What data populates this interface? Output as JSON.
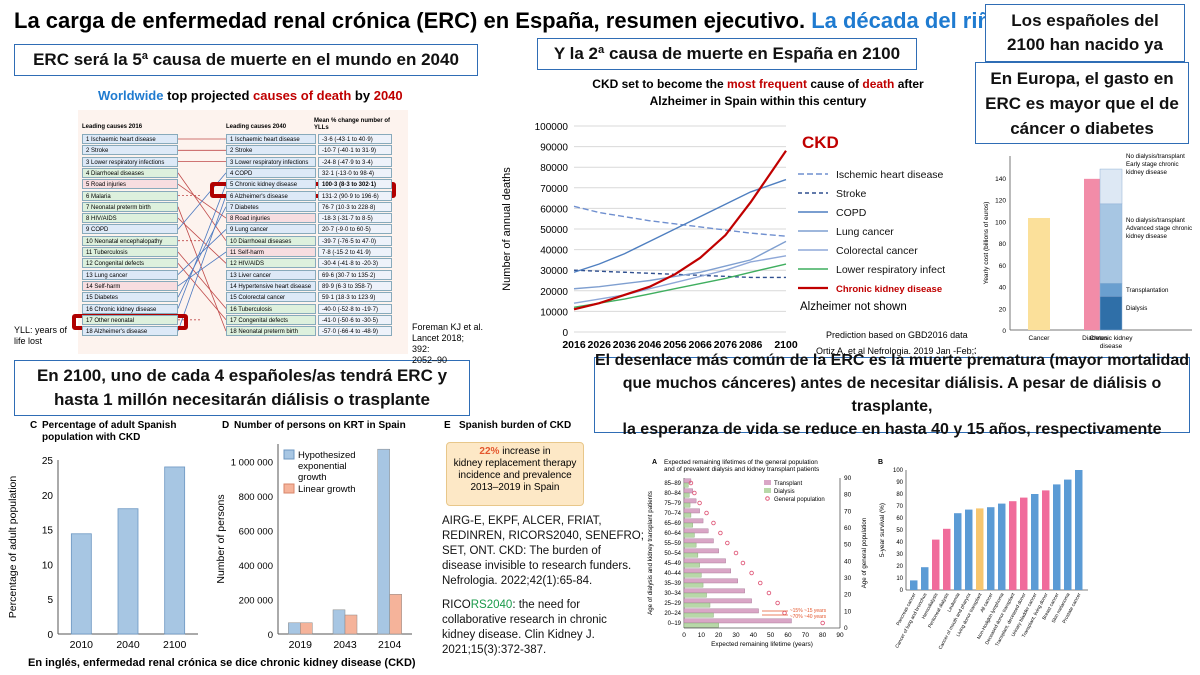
{
  "slide": {
    "title_main": "La carga de enfermedad renal crónica (ERC) en España, resumen ejecutivo.",
    "title_accent": "La década del riñón",
    "footer": "En inglés, enfermedad renal crónica se dice chronic kidney disease (CKD)"
  },
  "callouts": {
    "fifth_cause": "ERC será la 5ª causa de muerte en el mundo en 2040",
    "second_cause": "Y la 2ª causa de muerte en España en 2100",
    "born_already_l1": "Los españoles del",
    "born_already_l2": "2100 han nacido ya",
    "europe_cost_l1": "En Europa, el gasto en",
    "europe_cost_l2": "ERC es mayor que el de",
    "europe_cost_l3": "cáncer o diabetes",
    "one_in_four_l1": "En 2100, uno de cada 4 españoles/as tendrá ERC y",
    "one_in_four_l2": "hasta 1 millón necesitarán diálisis o trasplante",
    "premature_l1": "El desenlace más común de la ERC es la muerte prematura (mayor mortalidad",
    "premature_l2": "que muchos cánceres) antes de necesitar diálisis. A pesar de diálisis o trasplante,",
    "premature_l3": "la esperanza de vida se reduce en hasta 40 y 15 años, respectivamente"
  },
  "worldwide": {
    "title_a": "Worldwide",
    "title_b": " top projected ",
    "title_c": "causes of death",
    "title_d": " by ",
    "title_e": "2040",
    "col_left": "Leading causes 2016",
    "col_mid": "Leading causes 2040",
    "col_right": "Mean % change number of YLLs",
    "left_items": [
      "1 Ischaemic heart disease",
      "2 Stroke",
      "3 Lower respiratory infections",
      "4 Diarrhoeal diseases",
      "5 Road injuries",
      "6 Malaria",
      "7 Neonatal preterm birth",
      "8 HIV/AIDS",
      "9 COPD",
      "10 Neonatal encephalopathy",
      "11 Tuberculosis",
      "12 Congenital defects",
      "13 Lung cancer",
      "14 Self-harm",
      "15 Diabetes",
      "16 Chronic kidney disease",
      "17 Other neonatal",
      "18 Alzheimer's disease"
    ],
    "mid_items": [
      "1 Ischaemic heart disease",
      "2 Stroke",
      "3 Lower respiratory infections",
      "4 COPD",
      "5 Chronic kidney disease",
      "6 Alzheimer's disease",
      "7 Diabetes",
      "8 Road injuries",
      "9 Lung cancer",
      "10 Diarrhoeal diseases",
      "11 Self-harm",
      "12 HIV/AIDS",
      "13 Liver cancer",
      "14 Hypertensive heart disease",
      "15 Colorectal cancer",
      "16 Tuberculosis",
      "17 Congenital defects",
      "18 Neonatal preterm birth"
    ],
    "changes": [
      "-3·6 (-43·1 to 40·9)",
      "-10·7 (-40·1 to 31·9)",
      "-24·8 (-47·9 to 3·4)",
      "32·1 (-13·0 to 98·4)",
      "100·3 (8·3 to 302·1)",
      "131·2 (90·9 to 196·6)",
      "76·7 (10·3 to 228·8)",
      "-18·3 (-31·7 to 8·5)",
      "20·7 (-9·0 to 60·5)",
      "-39·7 (-76·5 to 47·0)",
      "7·8 (-15·2 to 41·9)",
      "-30·4 (-41·8 to -20·3)",
      "69·6 (30·7 to 135·2)",
      "89·9 (6·3 to 358·7)",
      "59·1 (18·3 to 123·9)",
      "-40·0 (-52·8 to -19·7)",
      "-41·0 (-50·6 to -30·5)",
      "-57·0 (-66·4 to -48·9)"
    ],
    "yll_note_l1": "YLL: years of",
    "yll_note_l2": "life lost",
    "ref_l1": "Foreman KJ et al.",
    "ref_l2": "Lancet 2018; 392:",
    "ref_l3": "2052–90"
  },
  "spain_chart": {
    "title_l1_a": "CKD set to become the ",
    "title_l1_b": "most frequent",
    "title_l1_c": " cause of ",
    "title_l1_d": "death",
    "title_l1_e": " after",
    "title_l2": "Alzheimer in Spain within this century",
    "ckd_label": "CKD",
    "alz_note": "Alzheimer not shown",
    "prediction_note": "Prediction based on GBD2016 data",
    "ref": "Ortiz A, et al Nefrologia. 2019 Jan -Feb;39(1"
  },
  "europe_chart": {
    "y_label": "Yearly cost (billions of euros)",
    "seg_labels": [
      "No dialysis/transplant Early stage chronic kidney disease",
      "No dialysis/transplant Advanced stage chronic kidney disease",
      "Transplantation",
      "Dialysis"
    ]
  },
  "panel_c": {
    "letter": "C",
    "title_l1": "Percentage of adult Spanish",
    "title_l2": "population with CKD"
  },
  "panel_d": {
    "letter": "D",
    "title": "Number of persons on KRT in Spain"
  },
  "panel_e": {
    "letter": "E",
    "title": "Spanish burden of CKD",
    "pct": "22%",
    "box_l1": " increase in",
    "box_l2": "kidney replacement therapy",
    "box_l3": "incidence and prevalence",
    "box_l4": "2013–2019 in Spain",
    "ref1_l1": "AIRG-E, EKPF, ALCER, FRIAT,",
    "ref1_l2": "REDINREN, RICORS2040, SENEFRO;",
    "ref1_l3": "SET, ONT. CKD: The burden of",
    "ref1_l4": "disease invisible to research funders.",
    "ref1_l5": "Nefrologia. 2022;42(1):65-84.",
    "ref2_a": "RICO",
    "ref2_b": "RS2040",
    "ref2_c": ": the need for",
    "ref2_l2": "collaborative research in chronic",
    "ref2_l3": "kidney disease. Clin Kidney J.",
    "ref2_l4": "2021;15(3):372-387."
  },
  "panel_life": {
    "letter": "A",
    "title_l1": "Expected remaining lifetimes of the general population",
    "title_l2": "and of prevalent dialysis and kidney transplant patients",
    "x_label": "Expected remaining lifetime (years)",
    "y_label_left": "Age of dialysis and kidney transplant patients",
    "y_label_right": "Age of general population",
    "note1": "~15% ~15 years",
    "note2": "~70% ~40 years"
  },
  "panel_survival": {
    "letter": "B",
    "y_label": "5-year survival (%)"
  },
  "chart_data": [
    {
      "type": "line",
      "title": "CKD set to become the most frequent cause of death after Alzheimer in Spain within this century",
      "ylabel": "Number of annual deaths",
      "x": [
        2016,
        2026,
        2036,
        2046,
        2056,
        2066,
        2076,
        2086,
        2100
      ],
      "ylim": [
        0,
        100000
      ],
      "yticks": [
        0,
        10000,
        20000,
        30000,
        40000,
        50000,
        60000,
        70000,
        80000,
        90000,
        100000
      ],
      "legend_position": "right",
      "series": [
        {
          "name": "Ischemic heart disease",
          "color": "#6f8fcf",
          "dash": "6,3",
          "values": [
            61000,
            58000,
            56000,
            54000,
            52500,
            51000,
            49500,
            48000,
            46500
          ]
        },
        {
          "name": "Stroke",
          "color": "#2f4f8f",
          "dash": "4,3",
          "values": [
            30000,
            29500,
            29000,
            28500,
            28000,
            27500,
            27000,
            26500,
            26500
          ]
        },
        {
          "name": "COPD",
          "color": "#4f7fc0",
          "dash": "",
          "values": [
            29000,
            33000,
            38000,
            44000,
            50000,
            56000,
            62000,
            68000,
            74000
          ]
        },
        {
          "name": "Lung cancer",
          "color": "#7f9fd0",
          "dash": "",
          "values": [
            21000,
            22000,
            23500,
            25000,
            27000,
            29000,
            32000,
            35000,
            44000
          ]
        },
        {
          "name": "Colorectal cancer",
          "color": "#8fa8d8",
          "dash": "",
          "values": [
            14000,
            16000,
            18000,
            21000,
            24000,
            27000,
            30000,
            34000,
            37000
          ]
        },
        {
          "name": "Lower respiratory infect",
          "color": "#3fae5f",
          "dash": "",
          "values": [
            12000,
            14000,
            16000,
            18500,
            21000,
            23500,
            26000,
            29000,
            33000
          ]
        },
        {
          "name": "Chronic kidney disease",
          "color": "#c00000",
          "dash": "",
          "values": [
            11000,
            14000,
            18000,
            22000,
            28000,
            36000,
            47000,
            63000,
            88000
          ]
        }
      ]
    },
    {
      "type": "bar",
      "title": "",
      "ylabel": "Yearly cost (billions of euros)",
      "categories": [
        "Cancer",
        "Diabetes",
        "Chronic kidney disease"
      ],
      "ylim": [
        0,
        140
      ],
      "yticks": [
        0,
        20,
        40,
        60,
        80,
        100,
        120,
        140
      ],
      "values": [
        103,
        139,
        148
      ],
      "stack_ckd": [
        {
          "label": "Dialysis",
          "value": 31,
          "color": "#2f6fa8"
        },
        {
          "label": "Transplantation",
          "value": 12,
          "color": "#6a9fcf"
        },
        {
          "label": "Advanced stage",
          "value": 73,
          "color": "#a7c6e3"
        },
        {
          "label": "Early stage",
          "value": 32,
          "color": "#dde8f4"
        }
      ],
      "colors": [
        "#fbe09a",
        "#f28ca8",
        "#a7c6e3"
      ]
    },
    {
      "type": "bar",
      "title": "Percentage of adult Spanish population with CKD",
      "ylabel": "Percentage of adult population",
      "categories": [
        "2010",
        "2040",
        "2100"
      ],
      "values": [
        14.4,
        18,
        24
      ],
      "ylim": [
        0,
        25
      ],
      "yticks": [
        0,
        5,
        10,
        15,
        20,
        25
      ]
    },
    {
      "type": "bar",
      "title": "Number of persons on KRT in Spain",
      "ylabel": "Number of persons",
      "categories": [
        "2019",
        "2043",
        "2104"
      ],
      "ylim": [
        0,
        1100000
      ],
      "yticks": [
        0,
        200000,
        400000,
        600000,
        800000,
        1000000
      ],
      "series": [
        {
          "name": "Hypothesized exponential growth",
          "color": "#a7c6e3",
          "values": [
            65000,
            140000,
            1070000
          ]
        },
        {
          "name": "Linear growth",
          "color": "#f5b39a",
          "values": [
            65000,
            110000,
            230000
          ]
        }
      ]
    },
    {
      "type": "bar",
      "title": "Expected remaining lifetimes of the general population and of prevalent dialysis and kidney transplant patients",
      "xlabel": "Expected remaining lifetime (years)",
      "ylabel": "Age of dialysis and kidney transplant patients",
      "categories": [
        "0–19",
        "20–24",
        "25–29",
        "30–34",
        "35–39",
        "40–44",
        "45–49",
        "50–54",
        "55–59",
        "60–64",
        "65–69",
        "70–74",
        "75–79",
        "80–84",
        "85–89"
      ],
      "xlim": [
        0,
        90
      ],
      "series": [
        {
          "name": "Transplant",
          "color": "#d9a6c6",
          "values": [
            62,
            43,
            39,
            35,
            31,
            27,
            24,
            20,
            17,
            14,
            11,
            9,
            7,
            5,
            4
          ]
        },
        {
          "name": "Dialysis",
          "color": "#b8d8a8",
          "values": [
            20,
            17,
            15,
            13,
            11,
            10,
            9,
            8,
            7,
            6,
            5,
            4,
            3.5,
            3,
            2.5
          ]
        },
        {
          "name": "General population",
          "color": "#e05a7a",
          "values": [
            80,
            58,
            54,
            49,
            44,
            39,
            34,
            30,
            25,
            21,
            17,
            13,
            9,
            6,
            4
          ]
        }
      ]
    },
    {
      "type": "bar",
      "title": "",
      "ylabel": "5-year survival (%)",
      "ylim": [
        0,
        100
      ],
      "yticks": [
        0,
        10,
        20,
        30,
        40,
        50,
        60,
        70,
        80,
        90,
        100
      ],
      "categories": [
        "Pancreas cancer",
        "Cancer of lung and bronchus",
        "Hemodialysis",
        "Peritoneal dialysis",
        "Leukemia",
        "Cancer of mouth and pharynx",
        "Living donor transplant",
        "All cancer",
        "Non-Hodgkin lymphoma",
        "Deceased donor transplant",
        "Transplant, deceased donor",
        "Urinary bladder cancer",
        "Transplant, living donor",
        "Breast cancer",
        "Skin melanoma",
        "Prostate cancer"
      ],
      "values": [
        8,
        19,
        42,
        51,
        64,
        67,
        68,
        69,
        72,
        74,
        77,
        80,
        83,
        88,
        92,
        100
      ],
      "colors": [
        "#5b9bd5",
        "#5b9bd5",
        "#f06c9b",
        "#f06c9b",
        "#5b9bd5",
        "#5b9bd5",
        "#f7c66f",
        "#5b9bd5",
        "#5b9bd5",
        "#f06c9b",
        "#f06c9b",
        "#5b9bd5",
        "#f06c9b",
        "#5b9bd5",
        "#5b9bd5",
        "#5b9bd5"
      ]
    }
  ]
}
